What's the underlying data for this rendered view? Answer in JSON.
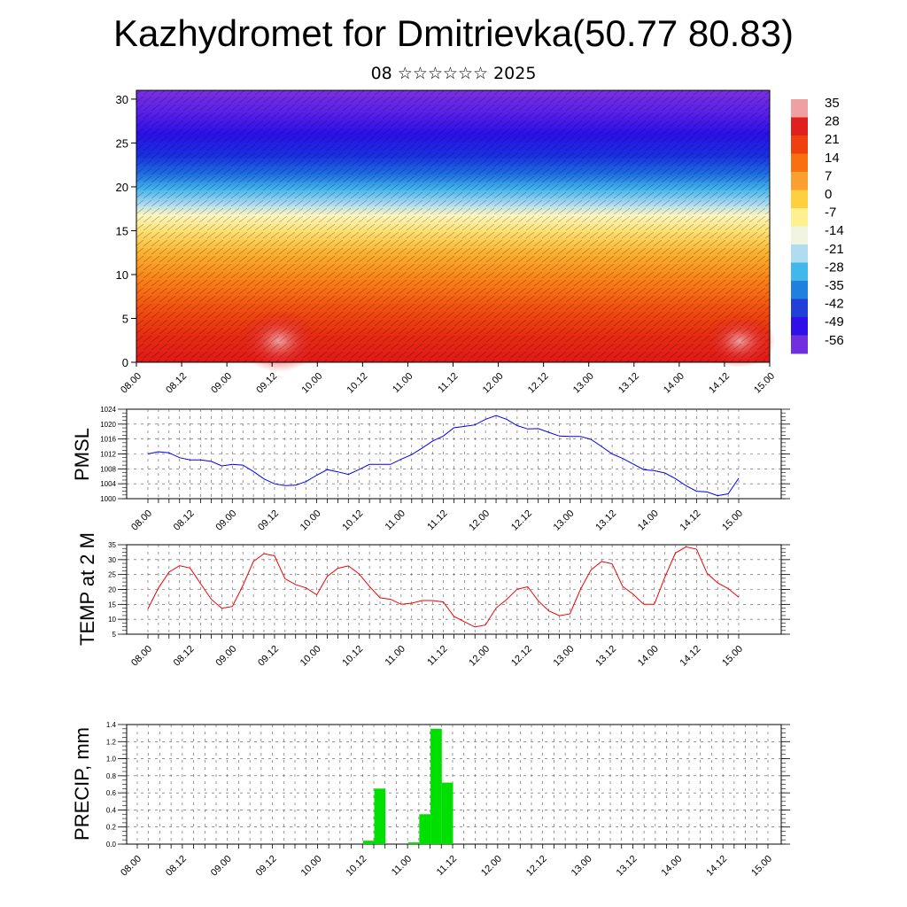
{
  "title": "Kazhydromet for Dmitrievka(50.77 80.83)",
  "subtitle": "08 ☆☆☆☆☆☆ 2025",
  "colorbar": {
    "labels": [
      "35",
      "28",
      "21",
      "14",
      "7",
      "0",
      "-7",
      "-14",
      "-21",
      "-28",
      "-35",
      "-42",
      "-49",
      "-56"
    ],
    "colors": [
      "#f0a0a0",
      "#e02020",
      "#f04010",
      "#f87010",
      "#fba030",
      "#fdd040",
      "#fef090",
      "#f0f4e0",
      "#b0dcef",
      "#40b8ec",
      "#2080e0",
      "#2040d8",
      "#3010e8",
      "#7030e0"
    ]
  },
  "chart_data": [
    {
      "type": "heatmap",
      "name": "cross-section",
      "x_ticks": [
        "08.00",
        "08.12",
        "09.00",
        "09.12",
        "10.00",
        "10.12",
        "11.00",
        "11.12",
        "12.00",
        "12.12",
        "13.00",
        "13.12",
        "14.00",
        "14.12",
        "15.00"
      ],
      "y_ticks": [
        "0",
        "5",
        "10",
        "15",
        "20",
        "25",
        "30"
      ],
      "ylim": [
        0,
        31
      ],
      "value_range": [
        -56,
        35
      ]
    },
    {
      "type": "line",
      "name": "pmsl",
      "ylabel": "PMSL",
      "color": "#0000ee",
      "x_ticks": [
        "08.00",
        "08.12",
        "09.00",
        "09.12",
        "10.00",
        "10.12",
        "11.00",
        "11.12",
        "12.00",
        "12.12",
        "13.00",
        "13.12",
        "14.00",
        "14.12",
        "15.00"
      ],
      "y_ticks": [
        "1000",
        "1004",
        "1008",
        "1012",
        "1016",
        "1020",
        "1024"
      ],
      "ylim": [
        1000,
        1024
      ],
      "values": [
        1012,
        1012.6,
        1012.3,
        1011,
        1010.4,
        1010.4,
        1010,
        1008.8,
        1009.2,
        1009,
        1007.3,
        1005.3,
        1004,
        1003.5,
        1003.6,
        1004.6,
        1006.3,
        1007.8,
        1007.2,
        1006.5,
        1007.8,
        1009.2,
        1009.2,
        1009.2,
        1010.6,
        1011.8,
        1013.6,
        1015.5,
        1016.8,
        1019,
        1019.4,
        1019.8,
        1021.3,
        1022.3,
        1021.3,
        1019.6,
        1018.7,
        1018.8,
        1017.8,
        1016.8,
        1016.7,
        1016.7,
        1015.9,
        1014,
        1012,
        1010.8,
        1009.3,
        1007.8,
        1007.5,
        1006.9,
        1005.4,
        1003.5,
        1002,
        1001.8,
        1000.8,
        1001.3,
        1005.5
      ]
    },
    {
      "type": "line",
      "name": "temp",
      "ylabel": "TEMP at 2 M",
      "color": "#ee0000",
      "x_ticks": [
        "08.00",
        "08.12",
        "09.00",
        "09.12",
        "10.00",
        "10.12",
        "11.00",
        "11.12",
        "12.00",
        "12.12",
        "13.00",
        "13.12",
        "14.00",
        "14.12",
        "15.00"
      ],
      "y_ticks": [
        "5",
        "10",
        "15",
        "20",
        "25",
        "30",
        "35"
      ],
      "ylim": [
        5,
        35
      ],
      "values": [
        13.5,
        20.5,
        25.8,
        28,
        27.2,
        21.9,
        16.7,
        13.7,
        14.3,
        21.3,
        29.4,
        32,
        31.3,
        23.6,
        21.6,
        20.5,
        18.2,
        24.4,
        27.1,
        27.9,
        25.3,
        21,
        17.2,
        16.7,
        15,
        15.4,
        16.3,
        16.3,
        15.8,
        11,
        9.2,
        7.4,
        8.1,
        13.8,
        16.6,
        20.1,
        20.9,
        16.2,
        12.8,
        11.2,
        11.8,
        20,
        26.6,
        29.4,
        28.6,
        21,
        18.4,
        15,
        15,
        24.1,
        32.2,
        34.3,
        33.5,
        25.4,
        22.2,
        20.3,
        17.4
      ]
    },
    {
      "type": "bar",
      "name": "precip",
      "ylabel": "PRECIP, mm",
      "color": "#00e000",
      "x_ticks": [
        "08.00",
        "08.12",
        "09.00",
        "09.12",
        "10.00",
        "10.12",
        "11.00",
        "11.12",
        "12.00",
        "12.12",
        "13.00",
        "13.12",
        "14.00",
        "14.12",
        "15.00"
      ],
      "y_ticks": [
        "0.0",
        "0.2",
        "0.4",
        "0.6",
        "0.8",
        "1.0",
        "1.2",
        "1.4"
      ],
      "ylim": [
        0,
        1.4
      ],
      "values": [
        0,
        0,
        0,
        0,
        0,
        0,
        0,
        0,
        0,
        0,
        0,
        0,
        0,
        0,
        0,
        0,
        0,
        0,
        0,
        0,
        0.04,
        0.65,
        0,
        0,
        0.02,
        0.35,
        1.35,
        0.72,
        0,
        0,
        0,
        0,
        0,
        0,
        0,
        0,
        0,
        0,
        0,
        0,
        0,
        0,
        0,
        0,
        0,
        0,
        0,
        0,
        0,
        0,
        0,
        0,
        0,
        0,
        0,
        0
      ]
    }
  ]
}
